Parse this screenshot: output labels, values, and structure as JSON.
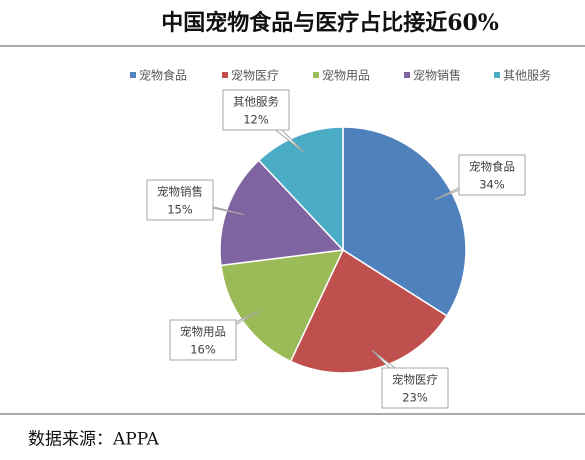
{
  "chart_data": {
    "type": "pie",
    "title": "中国宠物食品与医疗占比接近60%",
    "categories": [
      "宠物食品",
      "宠物医疗",
      "宠物用品",
      "宠物销售",
      "其他服务"
    ],
    "values": [
      34,
      23,
      16,
      15,
      12
    ],
    "value_labels": [
      "34%",
      "23%",
      "16%",
      "15%",
      "12%"
    ],
    "colors": [
      "#4f81bd",
      "#c0504d",
      "#9bbb59",
      "#8064a2",
      "#4bacc6"
    ],
    "legend": "top",
    "source": "数据来源：APPA"
  }
}
